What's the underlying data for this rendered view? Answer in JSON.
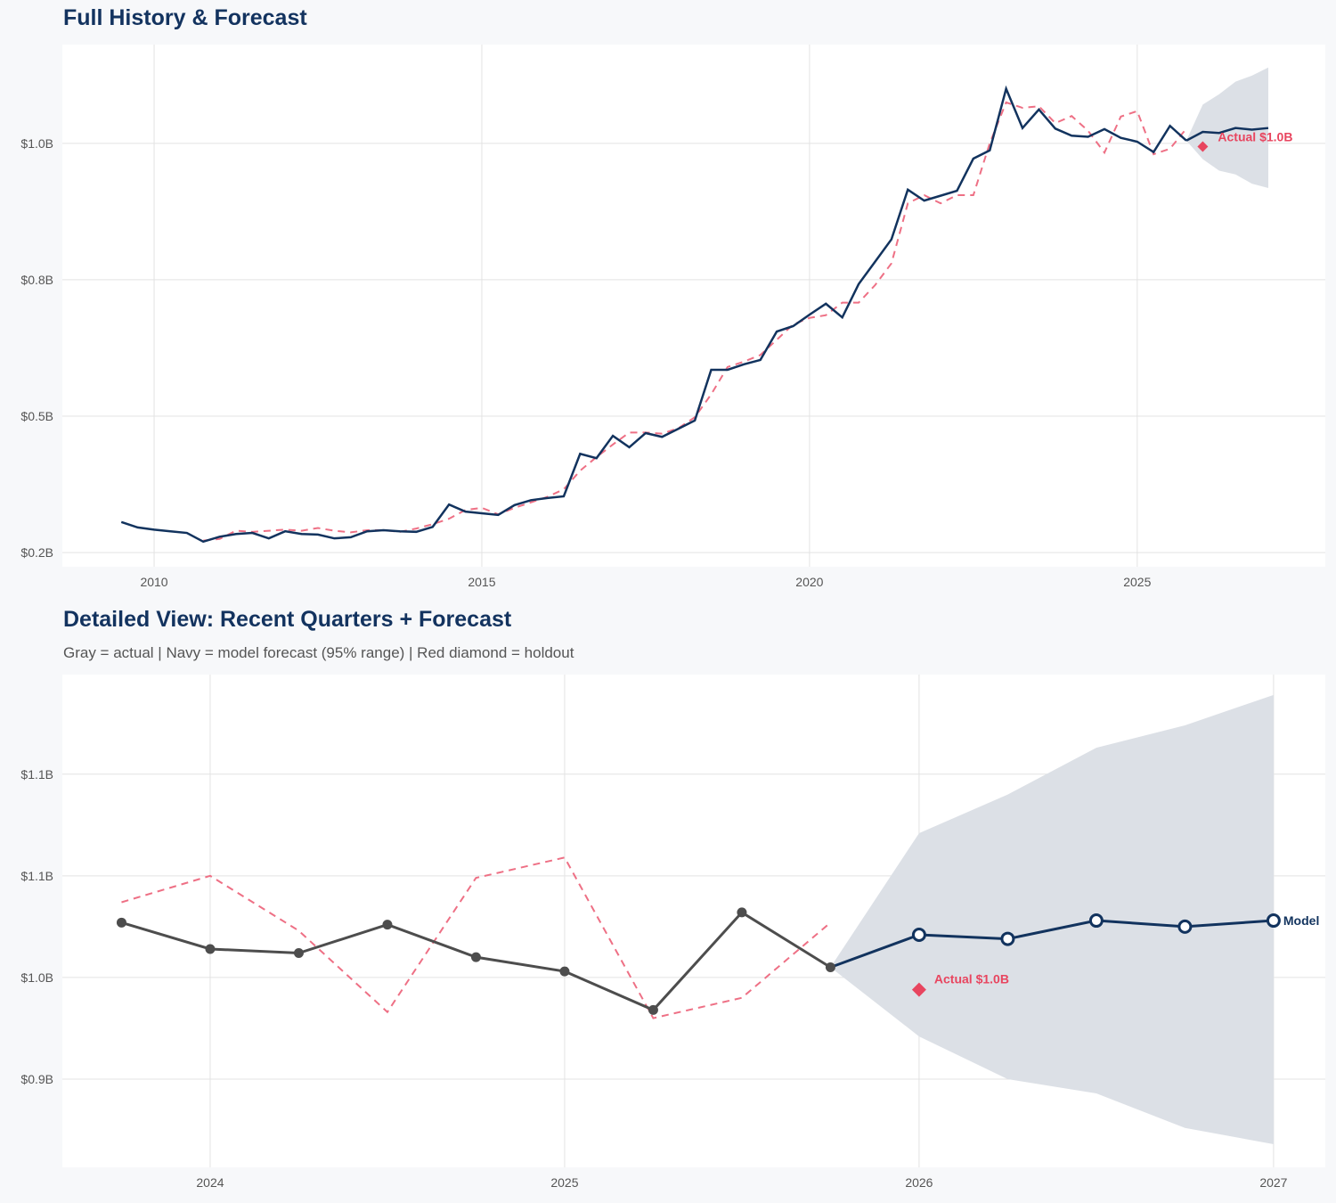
{
  "colors": {
    "navy": "#12335e",
    "red": "#e8455f",
    "red_dash": "#ee7085",
    "gray": "#4d4d4d",
    "band": "#dce0e6",
    "grid": "#e3e3e3"
  },
  "chart_data": [
    {
      "type": "line",
      "title": "Full History & Forecast",
      "xlim": [
        2008.6,
        2027.87
      ],
      "ylim": [
        0.224,
        1.181
      ],
      "x_ticks": [
        2010,
        2015,
        2020,
        2025
      ],
      "x_tick_labels": [
        "2010",
        "2015",
        "2020",
        "2025"
      ],
      "y_ticks": [
        0.25,
        0.5,
        0.75,
        1.0
      ],
      "y_tick_labels": [
        "$0.2B",
        "$0.5B",
        "$0.8B",
        "$1.0B"
      ],
      "grid": true,
      "actual": {
        "x_start": 2009.5,
        "x_step": 0.25,
        "values": [
          0.306,
          0.296,
          0.292,
          0.289,
          0.286,
          0.27,
          0.279,
          0.284,
          0.286,
          0.276,
          0.289,
          0.284,
          0.283,
          0.276,
          0.278,
          0.289,
          0.291,
          0.289,
          0.288,
          0.297,
          0.338,
          0.325,
          0.322,
          0.319,
          0.337,
          0.346,
          0.35,
          0.353,
          0.431,
          0.423,
          0.464,
          0.443,
          0.469,
          0.462,
          0.477,
          0.492,
          0.585,
          0.585,
          0.595,
          0.603,
          0.655,
          0.665,
          0.686,
          0.706,
          0.681,
          0.742,
          0.783,
          0.824,
          0.915,
          0.895,
          0.904,
          0.913,
          0.972,
          0.987,
          1.1,
          1.028,
          1.062,
          1.027,
          1.014,
          1.012,
          1.026,
          1.01,
          1.003,
          0.984,
          1.032,
          1.005
        ]
      },
      "fitted": {
        "x_start": 2010.75,
        "x_step": 0.25,
        "values": [
          0.272,
          0.275,
          0.29,
          0.288,
          0.29,
          0.292,
          0.29,
          0.295,
          0.29,
          0.287,
          0.291,
          0.291,
          0.288,
          0.294,
          0.302,
          0.312,
          0.328,
          0.332,
          0.32,
          0.332,
          0.342,
          0.352,
          0.366,
          0.4,
          0.425,
          0.448,
          0.47,
          0.47,
          0.468,
          0.478,
          0.498,
          0.54,
          0.59,
          0.6,
          0.612,
          0.64,
          0.668,
          0.68,
          0.685,
          0.708,
          0.708,
          0.74,
          0.78,
          0.89,
          0.905,
          0.89,
          0.905,
          0.905,
          1.0,
          1.075,
          1.065,
          1.068,
          1.037,
          1.05,
          1.023,
          0.983,
          1.049,
          1.059,
          0.98,
          0.99,
          1.027
        ]
      },
      "forecast": {
        "x": [
          2025.75,
          2026.0,
          2026.25,
          2026.5,
          2026.75,
          2027.0
        ],
        "values": [
          1.005,
          1.021,
          1.019,
          1.028,
          1.025,
          1.028
        ],
        "upper": [
          1.005,
          1.071,
          1.09,
          1.113,
          1.124,
          1.139
        ],
        "lower": [
          1.005,
          0.971,
          0.95,
          0.943,
          0.926,
          0.918
        ]
      },
      "holdout": {
        "x": 2026.0,
        "value": 0.994,
        "label": "Actual $1.0B"
      }
    },
    {
      "type": "line",
      "title": "Detailed View: Recent Quarters + Forecast",
      "subtitle": "Gray = actual  |  Navy = model forecast (95% range)  |  Red diamond = holdout",
      "xlim": [
        2023.583,
        2027.146
      ],
      "ylim": [
        0.9066,
        1.149
      ],
      "x_ticks": [
        2024,
        2025,
        2026,
        2027
      ],
      "x_tick_labels": [
        "2024",
        "2025",
        "2026",
        "2027"
      ],
      "y_ticks": [
        0.95,
        1.0,
        1.05,
        1.1
      ],
      "y_tick_labels": [
        "$0.9B",
        "$1.0B",
        "$1.1B",
        "$1.1B"
      ],
      "grid": true,
      "actual": {
        "x": [
          2023.75,
          2024.0,
          2024.25,
          2024.5,
          2024.75,
          2025.0,
          2025.25,
          2025.5,
          2025.75
        ],
        "values": [
          1.027,
          1.014,
          1.012,
          1.026,
          1.01,
          1.003,
          0.984,
          1.032,
          1.005
        ]
      },
      "fitted": {
        "x": [
          2023.75,
          2024.0,
          2024.25,
          2024.5,
          2024.75,
          2025.0,
          2025.25,
          2025.5,
          2025.75
        ],
        "values": [
          1.037,
          1.05,
          1.023,
          0.983,
          1.049,
          1.059,
          0.98,
          0.99,
          1.027
        ]
      },
      "forecast": {
        "x": [
          2025.75,
          2026.0,
          2026.25,
          2026.5,
          2026.75,
          2027.0
        ],
        "values": [
          1.005,
          1.021,
          1.019,
          1.028,
          1.025,
          1.028
        ],
        "upper": [
          1.005,
          1.071,
          1.09,
          1.113,
          1.124,
          1.139
        ],
        "lower": [
          1.005,
          0.971,
          0.95,
          0.943,
          0.926,
          0.918
        ],
        "label": "Model"
      },
      "holdout": {
        "x": 2026.0,
        "value": 0.994,
        "label": "Actual $1.0B"
      }
    }
  ]
}
